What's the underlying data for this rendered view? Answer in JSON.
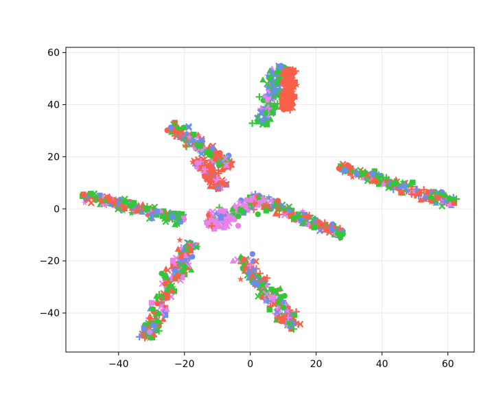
{
  "chart_data": {
    "type": "scatter",
    "title": "",
    "xlabel": "",
    "ylabel": "",
    "xlim": [
      -56,
      68
    ],
    "ylim": [
      -55,
      62
    ],
    "grid": true,
    "legend": "none",
    "x_ticks": [
      -40,
      -20,
      0,
      20,
      40,
      60
    ],
    "y_ticks": [
      -40,
      -20,
      0,
      20,
      40,
      60
    ],
    "x_tick_labels": [
      "−40",
      "−20",
      "0",
      "20",
      "40",
      "60"
    ],
    "y_tick_labels": [
      "−40",
      "−20",
      "0",
      "20",
      "40",
      "60"
    ],
    "colors": {
      "red": "#fa5f49",
      "blue": "#6b8df0",
      "green": "#35c538",
      "pink": "#ea82ea"
    },
    "markers": [
      "circle",
      "square",
      "triangle",
      "plus",
      "x",
      "star"
    ],
    "clusters": [
      {
        "arm": "top",
        "from": [
          4,
          32
        ],
        "to": [
          9,
          55
        ],
        "width": 3.0,
        "color_weights": {
          "blue": 3,
          "green": 4,
          "pink": 1
        }
      },
      {
        "arm": "top-red",
        "from": [
          11,
          38
        ],
        "to": [
          12,
          54
        ],
        "width": 1.6,
        "color_weights": {
          "red": 1
        }
      },
      {
        "arm": "upper-left",
        "from": [
          -24,
          32
        ],
        "to": [
          -6,
          16
        ],
        "width": 2.2,
        "color_weights": {
          "red": 4,
          "green": 4,
          "blue": 2,
          "pink": 1
        }
      },
      {
        "arm": "upper-left-inner",
        "from": [
          -16,
          19
        ],
        "to": [
          -9,
          8
        ],
        "width": 2.0,
        "color_weights": {
          "red": 4,
          "pink": 1,
          "blue": 1
        }
      },
      {
        "arm": "right",
        "from": [
          27,
          16
        ],
        "to": [
          62,
          2
        ],
        "width": 2.0,
        "color_weights": {
          "blue": 2,
          "green": 4,
          "red": 3,
          "pink": 1
        }
      },
      {
        "arm": "left",
        "from": [
          -51,
          5
        ],
        "to": [
          -20,
          -4
        ],
        "width": 2.0,
        "color_weights": {
          "green": 4,
          "red": 3,
          "blue": 2,
          "pink": 1
        }
      },
      {
        "arm": "center-right",
        "from": [
          0,
          5
        ],
        "to": [
          28,
          -10
        ],
        "width": 2.0,
        "color_weights": {
          "red": 3,
          "green": 3,
          "blue": 2,
          "pink": 1
        }
      },
      {
        "arm": "center",
        "from": [
          -13,
          -6
        ],
        "to": [
          4,
          4
        ],
        "width": 3.0,
        "color_weights": {
          "pink": 5,
          "red": 1,
          "blue": 1,
          "green": 1
        }
      },
      {
        "arm": "lower-left",
        "from": [
          -18,
          -13
        ],
        "to": [
          -32,
          -50
        ],
        "width": 2.5,
        "color_weights": {
          "red": 3,
          "green": 3,
          "blue": 2,
          "pink": 2
        }
      },
      {
        "arm": "lower-right",
        "from": [
          -3,
          -18
        ],
        "to": [
          14,
          -46
        ],
        "width": 2.5,
        "color_weights": {
          "red": 3,
          "green": 3,
          "blue": 2,
          "pink": 1
        }
      }
    ]
  }
}
